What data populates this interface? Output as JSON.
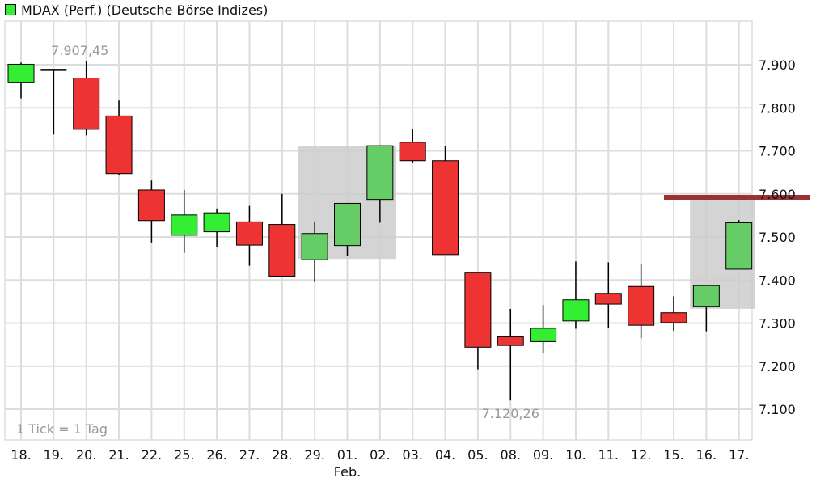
{
  "legend": {
    "label": "MDAX (Perf.) (Deutsche Börse Indizes)",
    "swatch_color": "#33ee33"
  },
  "colors": {
    "up": "#33ee33",
    "down": "#ee3333",
    "up_highlight": "#66cc66",
    "highlight_box": "#cccccc",
    "resistance": "#993333",
    "grid": "#dddddd",
    "annotation": "#999999"
  },
  "chart_data": {
    "type": "candlestick",
    "x_labels": [
      "18.",
      "19.",
      "20.",
      "21.",
      "22.",
      "25.",
      "26.",
      "27.",
      "28.",
      "29.",
      "01.",
      "02.",
      "03.",
      "04.",
      "05.",
      "08.",
      "09.",
      "10.",
      "11.",
      "12.",
      "15.",
      "16.",
      "17."
    ],
    "x_sublabels": [
      {
        "at": "01.",
        "text": "Feb."
      }
    ],
    "y_ticks": [
      7100,
      7200,
      7300,
      7400,
      7500,
      7600,
      7700,
      7800,
      7900
    ],
    "y_tick_labels": [
      "7.100",
      "7.200",
      "7.300",
      "7.400",
      "7.500",
      "7.600",
      "7.700",
      "7.800",
      "7.900"
    ],
    "ylim": [
      7030,
      7985
    ],
    "candles": [
      {
        "date": "18.",
        "open": 7858,
        "high": 7905,
        "low": 7822,
        "close": 7901,
        "dir": "up"
      },
      {
        "date": "19.",
        "open": 7888,
        "high": 7888,
        "low": 7738,
        "close": 7887,
        "dir": "flat"
      },
      {
        "date": "20.",
        "open": 7869,
        "high": 7907.45,
        "low": 7736,
        "close": 7750,
        "dir": "down"
      },
      {
        "date": "21.",
        "open": 7781,
        "high": 7817,
        "low": 7644,
        "close": 7647,
        "dir": "down"
      },
      {
        "date": "22.",
        "open": 7609,
        "high": 7631,
        "low": 7487,
        "close": 7538,
        "dir": "down"
      },
      {
        "date": "25.",
        "open": 7504,
        "high": 7609,
        "low": 7463,
        "close": 7551,
        "dir": "up"
      },
      {
        "date": "26.",
        "open": 7512,
        "high": 7566,
        "low": 7476,
        "close": 7556,
        "dir": "up"
      },
      {
        "date": "27.",
        "open": 7535,
        "high": 7572,
        "low": 7433,
        "close": 7481,
        "dir": "down"
      },
      {
        "date": "28.",
        "open": 7529,
        "high": 7600,
        "low": 7409,
        "close": 7409,
        "dir": "down"
      },
      {
        "date": "29.",
        "open": 7447,
        "high": 7536,
        "low": 7395,
        "close": 7508,
        "dir": "up",
        "highlight": true
      },
      {
        "date": "01.",
        "open": 7480,
        "high": 7579,
        "low": 7455,
        "close": 7578,
        "dir": "up",
        "highlight": true
      },
      {
        "date": "02.",
        "open": 7587,
        "high": 7712,
        "low": 7533,
        "close": 7712,
        "dir": "up",
        "highlight": true
      },
      {
        "date": "03.",
        "open": 7720,
        "high": 7750,
        "low": 7671,
        "close": 7677,
        "dir": "down"
      },
      {
        "date": "04.",
        "open": 7677,
        "high": 7712,
        "low": 7459,
        "close": 7459,
        "dir": "down"
      },
      {
        "date": "05.",
        "open": 7418,
        "high": 7418,
        "low": 7193,
        "close": 7244,
        "dir": "down"
      },
      {
        "date": "08.",
        "open": 7268,
        "high": 7333,
        "low": 7120.26,
        "close": 7248,
        "dir": "down"
      },
      {
        "date": "09.",
        "open": 7257,
        "high": 7342,
        "low": 7230,
        "close": 7288,
        "dir": "up"
      },
      {
        "date": "10.",
        "open": 7305,
        "high": 7443,
        "low": 7287,
        "close": 7354,
        "dir": "up"
      },
      {
        "date": "11.",
        "open": 7369,
        "high": 7441,
        "low": 7289,
        "close": 7344,
        "dir": "down"
      },
      {
        "date": "12.",
        "open": 7385,
        "high": 7438,
        "low": 7265,
        "close": 7295,
        "dir": "down"
      },
      {
        "date": "15.",
        "open": 7324,
        "high": 7362,
        "low": 7282,
        "close": 7301,
        "dir": "down"
      },
      {
        "date": "16.",
        "open": 7339,
        "high": 7387,
        "low": 7281,
        "close": 7387,
        "dir": "up",
        "highlight": true
      },
      {
        "date": "17.",
        "open": 7425,
        "high": 7539,
        "low": 7425,
        "close": 7533,
        "dir": "up",
        "highlight": true
      }
    ],
    "highlight_boxes": [
      {
        "from": "29.",
        "to": "02.",
        "low": 7449,
        "high": 7712
      },
      {
        "from": "16.",
        "to": "17.",
        "low": 7333,
        "high": 7592
      }
    ],
    "resistance_line": {
      "value": 7592,
      "from": "15.",
      "to_right_edge": true
    },
    "annotations": [
      {
        "text": "7.907,45",
        "value": 7907.45,
        "at": "20."
      },
      {
        "text": "7.120,26",
        "value": 7120.26,
        "at": "08."
      },
      {
        "text": "1 Tick = 1 Tag",
        "position": "bottom-left"
      }
    ],
    "grid": true
  }
}
